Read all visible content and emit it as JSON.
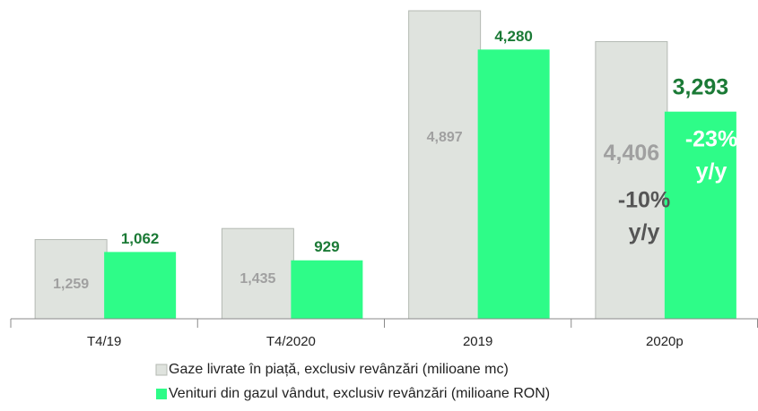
{
  "chart_data": {
    "type": "bar",
    "categories": [
      "T4/19",
      "T4/2020",
      "2019",
      "2020p"
    ],
    "series": [
      {
        "name": "Gaze livrate în piață, exclusiv revânzări (milioane mc)",
        "color": "#dfe3de",
        "values": [
          1259,
          1435,
          4897,
          4406
        ],
        "value_labels": [
          "1,259",
          "1,435",
          "4,897",
          "4,406"
        ]
      },
      {
        "name": "Venituri din gazul vândut, exclusiv revânzări (milioane RON)",
        "color": "#2efc88",
        "values": [
          1062,
          929,
          4280,
          3293
        ],
        "value_labels": [
          "1,062",
          "929",
          "4,280",
          "3,293"
        ]
      }
    ],
    "annotations": [
      {
        "lines": [
          "-10%",
          "y/y"
        ]
      },
      {
        "lines": [
          "-23%",
          "y/y"
        ]
      }
    ]
  }
}
